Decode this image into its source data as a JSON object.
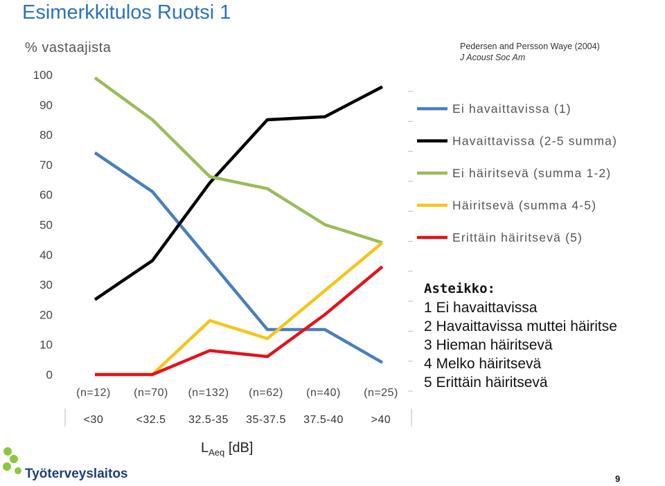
{
  "slide": {
    "title": "Esimerkkitulos Ruotsi 1",
    "source_authors": "Pedersen and Persson Waye (2004)",
    "source_journal": "J Acoust Soc Am",
    "page_number": "9",
    "logo_text": "Työterveyslaitos"
  },
  "colors": {
    "blue": "#4a7ebb",
    "black": "#000000",
    "green": "#9bbb59",
    "yellow": "#f5c518",
    "red": "#e0141b",
    "title": "#2a73b8"
  },
  "scale": {
    "title": "Asteikko:",
    "items": [
      "1 Ei havaittavissa",
      "2 Havaittavissa muttei häiritse",
      "3 Hieman häiritsevä",
      "4 Melko häiritsevä",
      "5 Erittäin häiritsevä"
    ]
  },
  "chart_data": {
    "type": "line",
    "title": "",
    "ylabel": "% vastaajista",
    "xlabel_main": "L",
    "xlabel_sub": "Aeq",
    "xlabel_unit": " [dB]",
    "ylim": [
      0,
      100
    ],
    "yticks": [
      0,
      10,
      20,
      30,
      40,
      50,
      60,
      70,
      80,
      90,
      100
    ],
    "categories": [
      "<30",
      "<32.5",
      "32.5-35",
      "35-37.5",
      "37.5-40",
      ">40"
    ],
    "n_labels": [
      "(n=12)",
      "(n=70)",
      "(n=132)",
      "(n=62)",
      "(n=40)",
      "(n=25)"
    ],
    "legend_position": "right",
    "series": [
      {
        "name": "Ei havaittavissa (1)",
        "color": "#4a7ebb",
        "values": [
          74,
          61,
          38,
          15,
          15,
          4
        ]
      },
      {
        "name": "Havaittavissa (2-5 summa)",
        "color": "#000000",
        "values": [
          25,
          38,
          64,
          85,
          86,
          96
        ]
      },
      {
        "name": "Ei häiritsevä (summa 1-2)",
        "color": "#9bbb59",
        "values": [
          99,
          85,
          66,
          62,
          50,
          44
        ]
      },
      {
        "name": "Häiritsevä (summa 4-5)",
        "color": "#f5c518",
        "values": [
          0,
          0,
          18,
          12,
          28,
          44
        ]
      },
      {
        "name": "Erittäin häiritsevä (5)",
        "color": "#e0141b",
        "values": [
          0,
          0,
          8,
          6,
          20,
          36
        ]
      }
    ]
  }
}
